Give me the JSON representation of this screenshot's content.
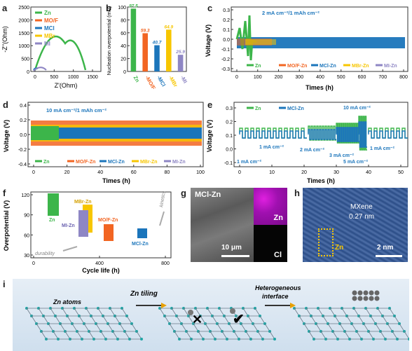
{
  "figure": {
    "panel_labels": [
      "a",
      "b",
      "c",
      "d",
      "e",
      "f",
      "g",
      "h",
      "i"
    ]
  },
  "panel_a": {
    "xlabel": "Z'(Ohm)",
    "ylabel": "-Z''(Ohm)",
    "x_ticks": [
      "0",
      "500",
      "1000",
      "1500"
    ],
    "y_ticks": [
      "0",
      "500",
      "1000",
      "1500",
      "2000",
      "2500"
    ],
    "legend": [
      {
        "name": "Zn",
        "color": "#3cb54a"
      },
      {
        "name": "MO/F",
        "color": "#f26522"
      },
      {
        "name": "MCl",
        "color": "#1b75bb"
      },
      {
        "name": "MBr",
        "color": "#f7c600"
      },
      {
        "name": "MI",
        "color": "#8e86c4"
      }
    ]
  },
  "chart_data": {
    "type": "bar",
    "ylabel": "Nucleation overpotential (mV)",
    "categories": [
      "Zn",
      "-MO/F",
      "-MCl",
      "-MBr",
      "-MI"
    ],
    "values": [
      97.5,
      59.3,
      40.7,
      64.9,
      25.9
    ],
    "value_labels": [
      "97.5",
      "59.3",
      "40.7",
      "64.9",
      "25.9"
    ],
    "colors": [
      "#3cb54a",
      "#f26522",
      "#1b75bb",
      "#f7c600",
      "#8e86c4"
    ],
    "y_ticks": [
      "0",
      "20",
      "40",
      "60",
      "80",
      "100"
    ],
    "ylim": [
      0,
      100
    ]
  },
  "panel_c": {
    "condition": "2 mA cm⁻²/1 mAh cm⁻²",
    "xlabel": "Times (h)",
    "ylabel": "Voltage (V)",
    "x_ticks": [
      "0",
      "100",
      "200",
      "300",
      "400",
      "500",
      "600",
      "700",
      "800"
    ],
    "y_ticks": [
      "0.3",
      "0.2",
      "0.1",
      "0.0",
      "-0.1",
      "-0.2",
      "-0.3"
    ],
    "legend": [
      "Zn",
      "MO/F-Zn",
      "MCl-Zn",
      "MBr-Zn",
      "MI-Zn"
    ]
  },
  "panel_d": {
    "condition": "10 mA cm⁻²/1 mAh cm⁻²",
    "xlabel": "Times (h)",
    "ylabel": "Voltage (V)",
    "x_ticks": [
      "0",
      "20",
      "40",
      "60",
      "80",
      "100"
    ],
    "y_ticks": [
      "0.4",
      "0.2",
      "0.0",
      "-0.2",
      "-0.4"
    ],
    "legend": [
      "Zn",
      "MO/F-Zn",
      "MCl-Zn",
      "MBr-Zn",
      "MI-Zn"
    ]
  },
  "panel_e": {
    "xlabel": "Times (h)",
    "ylabel": "Voltage (V)",
    "x_ticks": [
      "0",
      "10",
      "20",
      "30",
      "40",
      "50"
    ],
    "y_ticks": [
      "0.3",
      "0.2",
      "0.1",
      "0.0",
      "-0.1"
    ],
    "legend": [
      "Zn",
      "MCl-Zn"
    ],
    "annotations": [
      "1 mA cm⁻²",
      "1 mA cm⁻²",
      "2 mA cm⁻²",
      "3 mA cm⁻²",
      "5 mA cm⁻²",
      "10 mA cm⁻²",
      "1 mA cm⁻²"
    ]
  },
  "panel_f": {
    "xlabel": "Cycle life (h)",
    "ylabel": "Overpotential (V)",
    "x_ticks": [
      "0",
      "400",
      "800"
    ],
    "y_ticks": [
      "120",
      "90",
      "60",
      "30"
    ],
    "labels": [
      "Zn",
      "MBr-Zn",
      "MI-Zn",
      "MO/F-Zn",
      "MCl-Zn"
    ],
    "axis_notes": [
      "kinetics",
      "durability"
    ]
  },
  "panel_g": {
    "title": "MCl-Zn",
    "scale_bar": "10 μm",
    "maps": [
      "Zn",
      "Cl"
    ]
  },
  "panel_h": {
    "material": "MXene",
    "spacing": "0.27 nm",
    "element": "Zn",
    "scale_bar": "2 nm"
  },
  "panel_i": {
    "atoms_label": "Zn atoms",
    "step1": "Zn tiling",
    "step2a": "Heterogeneous",
    "step2b": "interface"
  }
}
